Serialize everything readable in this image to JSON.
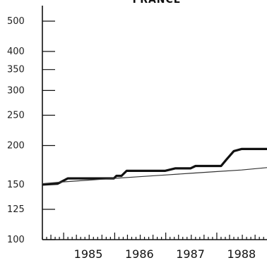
{
  "chart_data": {
    "type": "line",
    "title": "FRANCE",
    "xlabel": "",
    "ylabel": "",
    "scale_y": "log",
    "ylim": [
      100,
      500
    ],
    "yticks": [
      500,
      400,
      350,
      300,
      250,
      200,
      150,
      125,
      100
    ],
    "xlim": [
      1984.6,
      1989.0
    ],
    "xticks": [
      "1985",
      "1986",
      "1987",
      "1988"
    ],
    "x_tick_positions": [
      1985.0,
      1986.0,
      1987.0,
      1988.0
    ],
    "grid": false,
    "series": [
      {
        "name": "",
        "style": "bold",
        "x": [
          1984.6,
          1984.9,
          1985.0,
          1985.1,
          1985.3,
          1985.6,
          1985.85,
          1986.0,
          1986.05,
          1986.15,
          1986.25,
          1986.3,
          1986.4,
          1986.6,
          1986.8,
          1987.0,
          1987.2,
          1987.4,
          1987.5,
          1987.6,
          1987.7,
          1987.9,
          1988.1,
          1988.2,
          1988.35,
          1988.5,
          1988.7,
          1989.0
        ],
        "y": [
          150,
          151,
          154,
          157,
          157,
          157,
          157,
          157,
          160,
          160,
          166,
          166,
          166,
          166,
          166,
          166,
          169,
          169,
          169,
          172,
          172,
          172,
          172,
          180,
          192,
          195,
          195,
          195
        ]
      },
      {
        "name": "",
        "style": "thin",
        "x": [
          1984.6,
          1985.0,
          1985.5,
          1986.0,
          1986.5,
          1987.0,
          1987.5,
          1988.0,
          1988.5,
          1989.0
        ],
        "y": [
          151,
          153,
          155,
          157,
          159,
          161,
          163,
          165,
          167,
          170
        ]
      }
    ]
  }
}
